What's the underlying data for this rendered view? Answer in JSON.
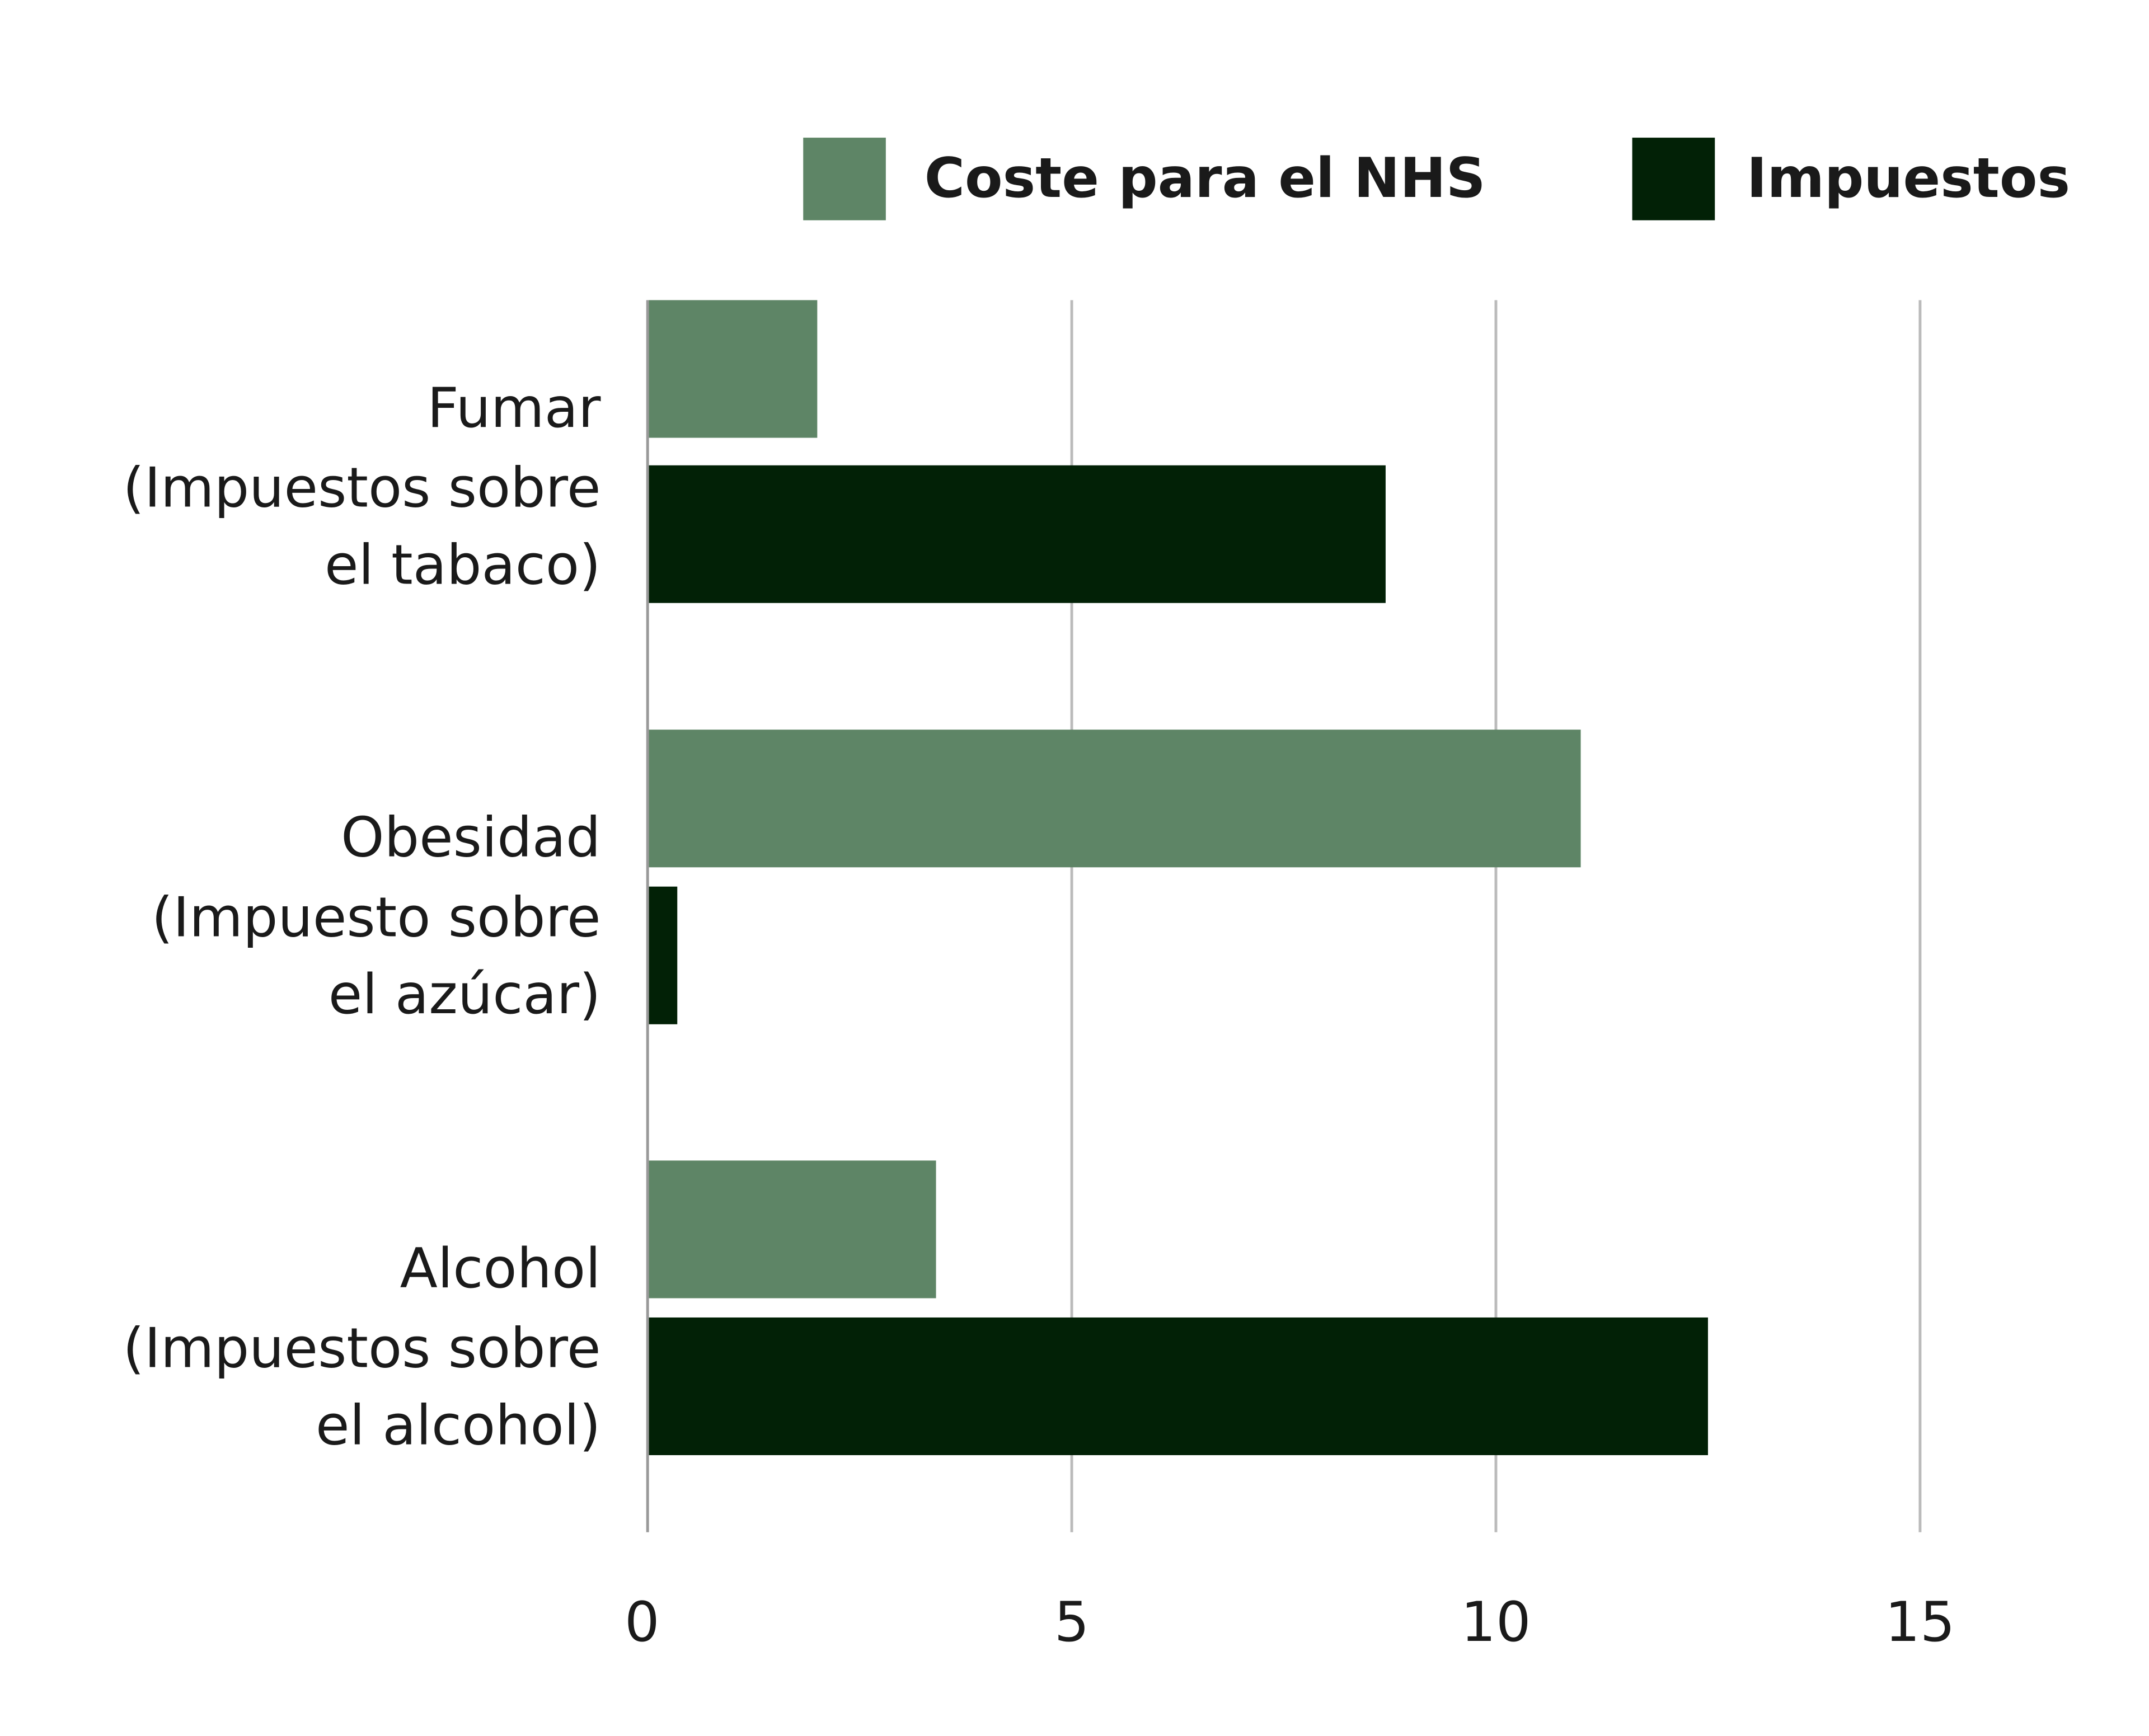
{
  "chart_data": {
    "type": "bar",
    "orientation": "horizontal",
    "title": "",
    "xlabel": "",
    "ylabel": "",
    "xlim": [
      0,
      15
    ],
    "x_ticks": [
      "0",
      "5",
      "10",
      "15"
    ],
    "grid": true,
    "legend_position": "top-right",
    "categories": [
      [
        "Fumar",
        "(Impuestos sobre",
        "el  tabaco)"
      ],
      [
        "Obesidad",
        "(Impuesto sobre",
        "el azúcar)"
      ],
      [
        "Alcohol",
        "(Impuestos sobre",
        "el alcohol)"
      ]
    ],
    "series": [
      {
        "name": "Coste para el NHS",
        "color": "#5e8566",
        "values": [
          2.0,
          11.0,
          3.4
        ]
      },
      {
        "name": "Impuestos",
        "color": "#022106",
        "values": [
          8.7,
          0.35,
          12.5
        ]
      }
    ]
  }
}
